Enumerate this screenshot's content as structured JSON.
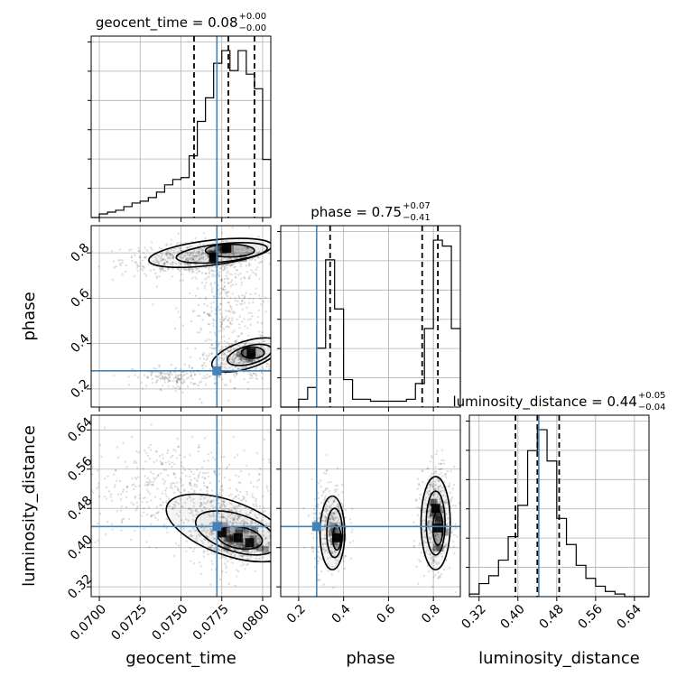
{
  "chart_data": {
    "type": "corner",
    "params": [
      "geocent_time",
      "phase",
      "luminosity_distance"
    ],
    "truths": {
      "geocent_time": 0.0772,
      "phase": 0.28,
      "luminosity_distance": 0.443
    },
    "accent_color": "#4682b4",
    "grid": true,
    "axes": {
      "geocent_time": {
        "label": "geocent_time",
        "range": [
          0.0695,
          0.0805
        ],
        "ticks": [
          0.07,
          0.0725,
          0.075,
          0.0775,
          0.08
        ],
        "tick_labels": [
          "0.0700",
          "0.0725",
          "0.0750",
          "0.0775",
          "0.0800"
        ]
      },
      "phase": {
        "label": "phase",
        "range": [
          0.12,
          0.92
        ],
        "ticks": [
          0.2,
          0.4,
          0.6,
          0.8
        ],
        "tick_labels": [
          "0.2",
          "0.4",
          "0.6",
          "0.8"
        ]
      },
      "luminosity_distance": {
        "label": "luminosity_distance",
        "range": [
          0.3,
          0.67
        ],
        "ticks": [
          0.32,
          0.4,
          0.48,
          0.56,
          0.64
        ],
        "tick_labels": [
          "0.32",
          "0.40",
          "0.48",
          "0.56",
          "0.64"
        ]
      }
    },
    "marginals": [
      {
        "param": "geocent_time",
        "title_main": "geocent_time = 0.08",
        "title_sup": "+0.00",
        "title_sub": "−0.00",
        "quantiles": [
          0.0758,
          0.0779,
          0.0795
        ],
        "bin_edges": [
          0.0695,
          0.07,
          0.0705,
          0.071,
          0.0715,
          0.072,
          0.0725,
          0.073,
          0.0735,
          0.074,
          0.0745,
          0.075,
          0.0755,
          0.076,
          0.0765,
          0.077,
          0.0775,
          0.078,
          0.0785,
          0.079,
          0.0795,
          0.08,
          0.0805
        ],
        "counts": [
          0,
          2,
          3,
          4,
          6,
          8,
          9,
          11,
          14,
          18,
          21,
          22,
          34,
          53,
          66,
          85,
          92,
          81,
          92,
          79,
          71,
          32
        ]
      },
      {
        "param": "phase",
        "title_main": "phase = 0.75",
        "title_sup": "+0.07",
        "title_sub": "−0.41",
        "quantiles": [
          0.34,
          0.75,
          0.82
        ],
        "bin_edges": [
          0.12,
          0.16,
          0.2,
          0.24,
          0.28,
          0.32,
          0.36,
          0.4,
          0.44,
          0.48,
          0.52,
          0.56,
          0.6,
          0.64,
          0.68,
          0.72,
          0.76,
          0.8,
          0.84,
          0.88,
          0.92
        ],
        "counts": [
          0,
          0,
          4,
          10,
          30,
          75,
          50,
          14,
          4,
          4,
          3,
          3,
          3,
          3,
          4,
          12,
          40,
          85,
          82,
          40
        ]
      },
      {
        "param": "luminosity_distance",
        "title_main": "luminosity_distance = 0.44",
        "title_sup": "+0.05",
        "title_sub": "−0.04",
        "quantiles": [
          0.395,
          0.44,
          0.485
        ],
        "bin_edges": [
          0.3,
          0.32,
          0.34,
          0.36,
          0.38,
          0.4,
          0.42,
          0.44,
          0.46,
          0.48,
          0.5,
          0.52,
          0.54,
          0.56,
          0.58,
          0.6,
          0.62,
          0.64,
          0.66,
          0.67
        ],
        "counts": [
          2,
          10,
          16,
          28,
          46,
          70,
          112,
          128,
          104,
          60,
          40,
          24,
          14,
          8,
          4,
          2,
          0,
          0,
          0
        ]
      }
    ],
    "scatter_panels": [
      {
        "x": "geocent_time",
        "y": "phase",
        "clouds": [
          {
            "n": 520,
            "cx": 0.0758,
            "cy": 0.77,
            "sx": 0.0022,
            "sy": 0.035
          },
          {
            "n": 320,
            "cx": 0.0785,
            "cy": 0.33,
            "sx": 0.001,
            "sy": 0.045
          },
          {
            "n": 160,
            "cx": 0.0745,
            "cy": 0.25,
            "sx": 0.0012,
            "sy": 0.025
          },
          {
            "n": 340,
            "cx": 0.0778,
            "cy": 0.55,
            "sx": 0.0012,
            "sy": 0.14
          }
        ],
        "density_blobs": [
          {
            "cx": 0.0778,
            "cy": 0.82,
            "sx": 0.0004,
            "sy": 0.013
          },
          {
            "cx": 0.077,
            "cy": 0.78,
            "sx": 0.0008,
            "sy": 0.016
          },
          {
            "cx": 0.0793,
            "cy": 0.36,
            "sx": 0.0003,
            "sy": 0.02
          }
        ],
        "contours": [
          {
            "cx": 0.0768,
            "cy": 0.8,
            "rx": 0.0038,
            "ry": 0.055,
            "rot": -7
          },
          {
            "cx": 0.0775,
            "cy": 0.8,
            "rx": 0.0028,
            "ry": 0.04,
            "rot": -6
          },
          {
            "cx": 0.078,
            "cy": 0.81,
            "rx": 0.0015,
            "ry": 0.028,
            "rot": 0
          },
          {
            "cx": 0.079,
            "cy": 0.35,
            "rx": 0.0022,
            "ry": 0.06,
            "rot": -18
          },
          {
            "cx": 0.0792,
            "cy": 0.35,
            "rx": 0.0014,
            "ry": 0.04,
            "rot": -15
          },
          {
            "cx": 0.0794,
            "cy": 0.36,
            "rx": 0.0007,
            "ry": 0.025,
            "rot": 0
          }
        ]
      },
      {
        "x": "geocent_time",
        "y": "luminosity_distance",
        "clouds": [
          {
            "n": 480,
            "cx": 0.0745,
            "cy": 0.52,
            "sx": 0.0028,
            "sy": 0.05
          },
          {
            "n": 700,
            "cx": 0.0782,
            "cy": 0.43,
            "sx": 0.0013,
            "sy": 0.035
          }
        ],
        "density_blobs": [
          {
            "cx": 0.0785,
            "cy": 0.42,
            "sx": 0.0006,
            "sy": 0.012
          },
          {
            "cx": 0.0775,
            "cy": 0.43,
            "sx": 0.0005,
            "sy": 0.01
          },
          {
            "cx": 0.0792,
            "cy": 0.41,
            "sx": 0.0004,
            "sy": 0.012
          }
        ],
        "contours": [
          {
            "cx": 0.0779,
            "cy": 0.44,
            "rx": 0.004,
            "ry": 0.055,
            "rot": 20
          },
          {
            "cx": 0.0784,
            "cy": 0.43,
            "rx": 0.0026,
            "ry": 0.038,
            "rot": 18
          },
          {
            "cx": 0.0786,
            "cy": 0.42,
            "rx": 0.0014,
            "ry": 0.022,
            "rot": 10
          }
        ]
      },
      {
        "x": "phase",
        "y": "luminosity_distance",
        "clouds": [
          {
            "n": 420,
            "cx": 0.34,
            "cy": 0.44,
            "sx": 0.04,
            "sy": 0.045
          },
          {
            "n": 620,
            "cx": 0.81,
            "cy": 0.46,
            "sx": 0.035,
            "sy": 0.05
          }
        ],
        "density_blobs": [
          {
            "cx": 0.37,
            "cy": 0.42,
            "sx": 0.012,
            "sy": 0.014
          },
          {
            "cx": 0.82,
            "cy": 0.44,
            "sx": 0.018,
            "sy": 0.018
          },
          {
            "cx": 0.81,
            "cy": 0.48,
            "sx": 0.01,
            "sy": 0.014
          }
        ],
        "contours": [
          {
            "cx": 0.35,
            "cy": 0.43,
            "rx": 0.055,
            "ry": 0.075,
            "rot": 0
          },
          {
            "cx": 0.36,
            "cy": 0.43,
            "rx": 0.035,
            "ry": 0.05,
            "rot": 0
          },
          {
            "cx": 0.37,
            "cy": 0.42,
            "rx": 0.018,
            "ry": 0.025,
            "rot": 0
          },
          {
            "cx": 0.81,
            "cy": 0.45,
            "rx": 0.065,
            "ry": 0.095,
            "rot": 0
          },
          {
            "cx": 0.81,
            "cy": 0.45,
            "rx": 0.042,
            "ry": 0.065,
            "rot": 0
          },
          {
            "cx": 0.82,
            "cy": 0.44,
            "rx": 0.022,
            "ry": 0.035,
            "rot": 0
          }
        ]
      }
    ]
  }
}
